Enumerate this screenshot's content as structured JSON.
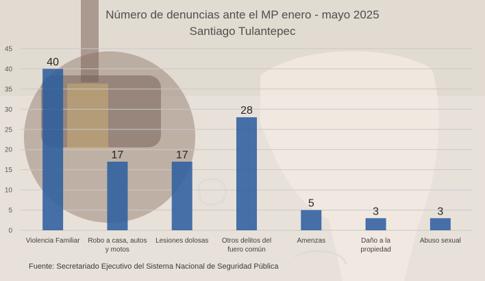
{
  "chart_data": {
    "type": "bar",
    "title": "Número de denuncias ante el MP enero - mayo 2025",
    "subtitle": "Santiago Tulantepec",
    "categories": [
      [
        "Violencia Familiar"
      ],
      [
        "Robo a casa, autos",
        "y motos"
      ],
      [
        "Lesiones dolosas"
      ],
      [
        "Otros delitos del",
        "fuero común"
      ],
      [
        "Amenzas"
      ],
      [
        "Daño a la",
        "propiedad"
      ],
      [
        "Abuso sexual"
      ]
    ],
    "values": [
      40,
      17,
      17,
      28,
      5,
      3,
      3
    ],
    "ylim": [
      0,
      45
    ],
    "yticks": [
      0,
      5,
      10,
      15,
      20,
      25,
      30,
      35,
      40,
      45
    ],
    "grid": true,
    "bar_color": "#2e5f9e",
    "source": "Fuente:  Secretariado Ejecutivo del Sistema Nacional de Seguridad Pública"
  }
}
